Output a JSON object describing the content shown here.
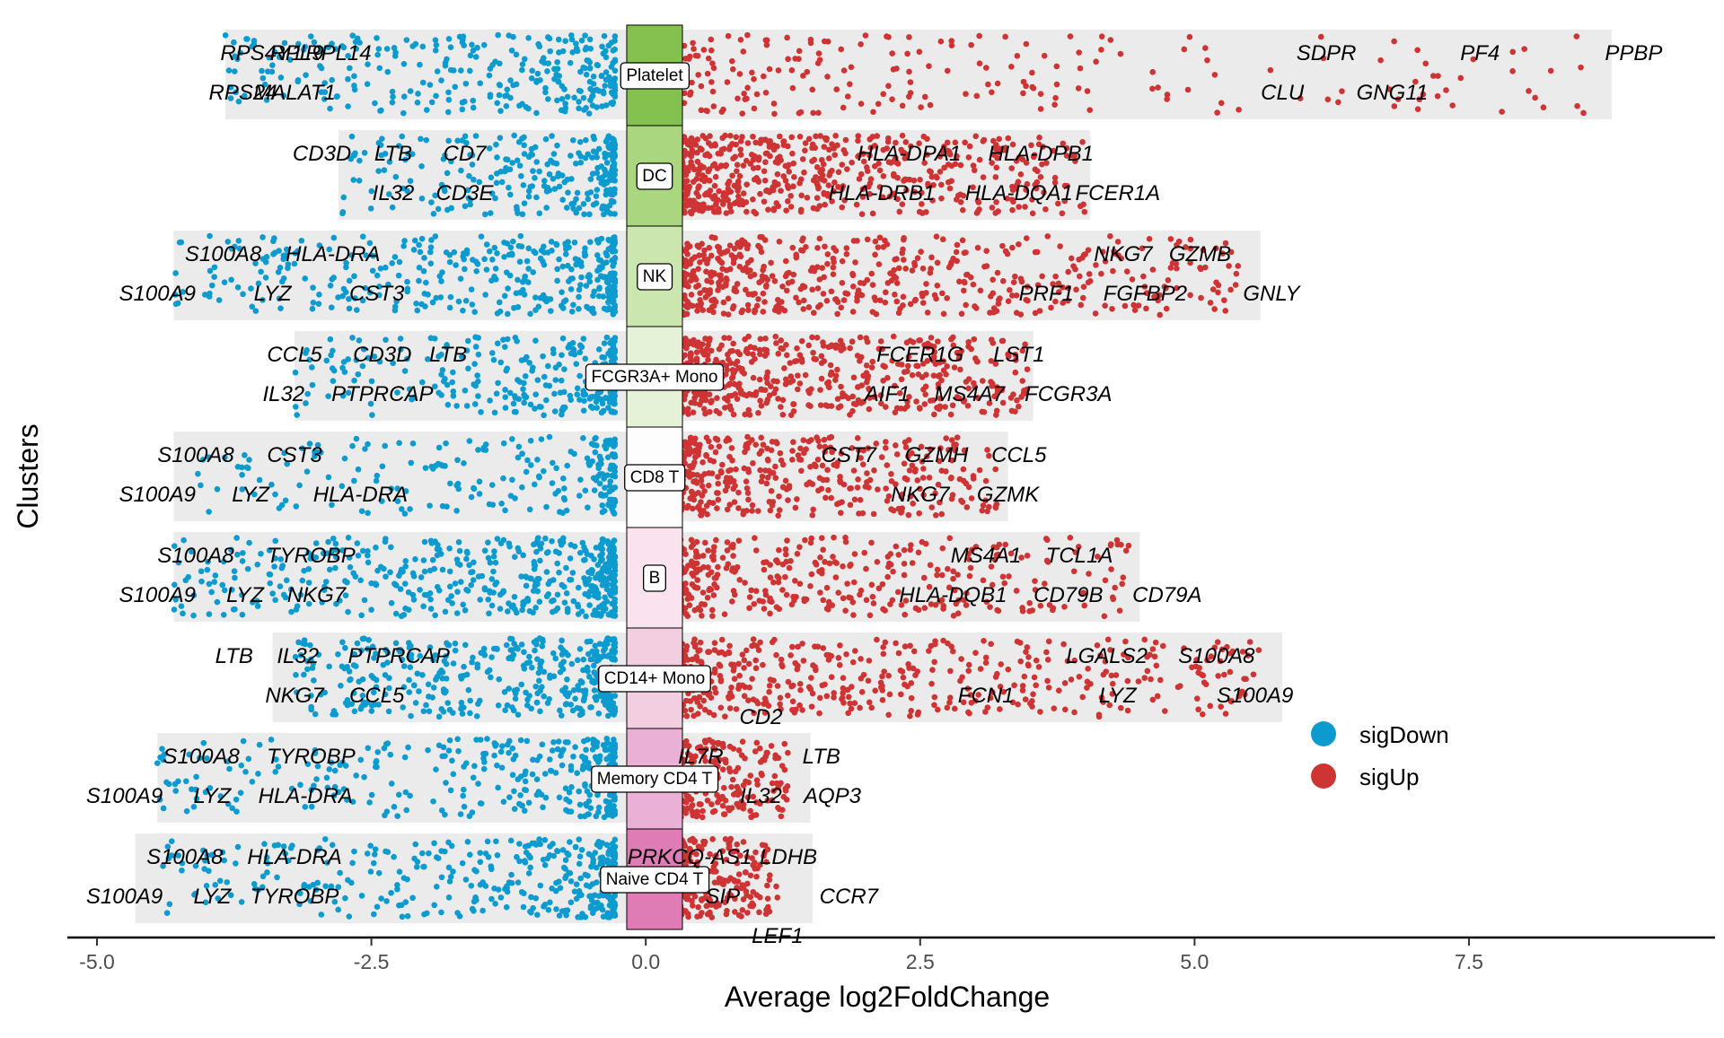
{
  "chart_data": {
    "type": "scatter",
    "xlabel": "Average log2FoldChange",
    "ylabel": "Clusters",
    "xlim": [
      -5.0,
      9.3
    ],
    "x_ticks": [
      "-5.0",
      "-2.5",
      "0.0",
      "2.5",
      "5.0",
      "7.5"
    ],
    "x_tick_values": [
      -5.0,
      -2.5,
      0.0,
      2.5,
      5.0,
      7.5
    ],
    "grid": false,
    "legend_position": "right",
    "legend": [
      {
        "name": "sigDown",
        "color": "#0C9BCE"
      },
      {
        "name": "sigUp",
        "color": "#CE3434"
      }
    ],
    "clusters": [
      {
        "name": "Platelet",
        "color": "#84C14F",
        "range": [
          -3.83,
          8.8
        ],
        "n_down": 300,
        "n_up": 220,
        "down_min": -3.83,
        "up_max": 8.8,
        "labels": [
          {
            "text": "RPS4Y1",
            "x": -3.5,
            "row": 0
          },
          {
            "text": "RPL9",
            "x": -3.18,
            "row": 0
          },
          {
            "text": "RPL14",
            "x": -2.8,
            "row": 0
          },
          {
            "text": "RPS24",
            "x": -3.67,
            "row": 1
          },
          {
            "text": "MALAT1",
            "x": -3.2,
            "row": 1
          },
          {
            "text": "SDPR",
            "x": 6.2,
            "row": 0
          },
          {
            "text": "PF4",
            "x": 7.6,
            "row": 0
          },
          {
            "text": "PPBP",
            "x": 9.0,
            "row": 0
          },
          {
            "text": "CLU",
            "x": 5.8,
            "row": 1
          },
          {
            "text": "GNG11",
            "x": 6.8,
            "row": 1
          }
        ]
      },
      {
        "name": "DC",
        "color": "#A9D67E",
        "range": [
          -2.8,
          4.05
        ],
        "n_down": 260,
        "n_up": 650,
        "down_min": -2.8,
        "up_max": 4.0,
        "labels": [
          {
            "text": "CD3D",
            "x": -2.95,
            "row": 0
          },
          {
            "text": "LTB",
            "x": -2.3,
            "row": 0
          },
          {
            "text": "CD7",
            "x": -1.65,
            "row": 0
          },
          {
            "text": "IL32",
            "x": -2.3,
            "row": 1
          },
          {
            "text": "CD3E",
            "x": -1.65,
            "row": 1
          },
          {
            "text": "HLA-DPA1",
            "x": 2.4,
            "row": 0
          },
          {
            "text": "HLA-DPB1",
            "x": 3.6,
            "row": 0
          },
          {
            "text": "HLA-DRB1",
            "x": 2.15,
            "row": 1
          },
          {
            "text": "HLA-DQA1",
            "x": 3.4,
            "row": 1
          },
          {
            "text": "FCER1A",
            "x": 4.3,
            "row": 1
          }
        ]
      },
      {
        "name": "NK",
        "color": "#CBE6AE",
        "range": [
          -4.3,
          5.6
        ],
        "n_down": 380,
        "n_up": 560,
        "down_min": -4.3,
        "up_max": 5.4,
        "labels": [
          {
            "text": "S100A8",
            "x": -3.85,
            "row": 0
          },
          {
            "text": "HLA-DRA",
            "x": -2.85,
            "row": 0
          },
          {
            "text": "S100A9",
            "x": -4.45,
            "row": 1
          },
          {
            "text": "LYZ",
            "x": -3.4,
            "row": 1
          },
          {
            "text": "CST3",
            "x": -2.45,
            "row": 1
          },
          {
            "text": "NKG7",
            "x": 4.35,
            "row": 0
          },
          {
            "text": "GZMB",
            "x": 5.05,
            "row": 0
          },
          {
            "text": "PRF1",
            "x": 3.65,
            "row": 1
          },
          {
            "text": "FGFBP2",
            "x": 4.55,
            "row": 1
          },
          {
            "text": "GNLY",
            "x": 5.7,
            "row": 1
          }
        ]
      },
      {
        "name": "FCGR3A+ Mono",
        "color": "#E6F2D8",
        "range": [
          -3.2,
          3.53
        ],
        "n_down": 290,
        "n_up": 560,
        "down_min": -3.2,
        "up_max": 3.5,
        "labels": [
          {
            "text": "CCL5",
            "x": -3.2,
            "row": 0
          },
          {
            "text": "CD3D",
            "x": -2.4,
            "row": 0
          },
          {
            "text": "LTB",
            "x": -1.8,
            "row": 0
          },
          {
            "text": "IL32",
            "x": -3.3,
            "row": 1
          },
          {
            "text": "PTPRCAP",
            "x": -2.4,
            "row": 1
          },
          {
            "text": "FCER1G",
            "x": 2.5,
            "row": 0
          },
          {
            "text": "LST1",
            "x": 3.4,
            "row": 0
          },
          {
            "text": "AIF1",
            "x": 2.2,
            "row": 1
          },
          {
            "text": "MS4A7",
            "x": 2.95,
            "row": 1
          },
          {
            "text": "FCGR3A",
            "x": 3.85,
            "row": 1
          }
        ]
      },
      {
        "name": "CD8 T",
        "color": "#FDFDFD",
        "range": [
          -4.3,
          3.3
        ],
        "n_down": 220,
        "n_up": 420,
        "down_min": -4.1,
        "up_max": 3.2,
        "labels": [
          {
            "text": "S100A8",
            "x": -4.1,
            "row": 0
          },
          {
            "text": "CST3",
            "x": -3.2,
            "row": 0
          },
          {
            "text": "S100A9",
            "x": -4.45,
            "row": 1
          },
          {
            "text": "LYZ",
            "x": -3.6,
            "row": 1
          },
          {
            "text": "HLA-DRA",
            "x": -2.6,
            "row": 1
          },
          {
            "text": "CST7",
            "x": 1.85,
            "row": 0
          },
          {
            "text": "GZMH",
            "x": 2.65,
            "row": 0
          },
          {
            "text": "CCL5",
            "x": 3.4,
            "row": 0
          },
          {
            "text": "NKG7",
            "x": 2.5,
            "row": 1
          },
          {
            "text": "GZMK",
            "x": 3.3,
            "row": 1
          }
        ]
      },
      {
        "name": "B",
        "color": "#FAE3EF",
        "range": [
          -4.3,
          4.5
        ],
        "n_down": 480,
        "n_up": 380,
        "down_min": -4.3,
        "up_max": 4.4,
        "labels": [
          {
            "text": "S100A8",
            "x": -4.1,
            "row": 0
          },
          {
            "text": "TYROBP",
            "x": -3.05,
            "row": 0
          },
          {
            "text": "S100A9",
            "x": -4.45,
            "row": 1
          },
          {
            "text": "LYZ",
            "x": -3.65,
            "row": 1
          },
          {
            "text": "NKG7",
            "x": -3.0,
            "row": 1
          },
          {
            "text": "MS4A1",
            "x": 3.1,
            "row": 0
          },
          {
            "text": "TCL1A",
            "x": 3.95,
            "row": 0
          },
          {
            "text": "HLA-DQB1",
            "x": 2.8,
            "row": 1
          },
          {
            "text": "CD79B",
            "x": 3.85,
            "row": 1
          },
          {
            "text": "CD79A",
            "x": 4.75,
            "row": 1
          }
        ]
      },
      {
        "name": "CD14+ Mono",
        "color": "#F2CEE0",
        "range": [
          -3.4,
          5.8
        ],
        "n_down": 420,
        "n_up": 470,
        "down_min": -3.25,
        "up_max": 5.6,
        "labels": [
          {
            "text": "LTB",
            "x": -3.75,
            "row": 0
          },
          {
            "text": "IL32",
            "x": -3.17,
            "row": 0
          },
          {
            "text": "PTPRCAP",
            "x": -2.25,
            "row": 0
          },
          {
            "text": "NKG7",
            "x": -3.2,
            "row": 1
          },
          {
            "text": "CCL5",
            "x": -2.45,
            "row": 1
          },
          {
            "text": "LGALS2",
            "x": 4.2,
            "row": 0
          },
          {
            "text": "S100A8",
            "x": 5.2,
            "row": 0
          },
          {
            "text": "FCN1",
            "x": 3.1,
            "row": 1
          },
          {
            "text": "LYZ",
            "x": 4.3,
            "row": 1
          },
          {
            "text": "S100A9",
            "x": 5.55,
            "row": 1
          }
        ]
      },
      {
        "name": "Memory CD4 T",
        "color": "#EBB0D6",
        "range": [
          -4.45,
          1.5
        ],
        "n_down": 330,
        "n_up": 260,
        "down_min": -4.45,
        "up_max": 1.3,
        "labels": [
          {
            "text": "S100A8",
            "x": -4.05,
            "row": 0
          },
          {
            "text": "TYROBP",
            "x": -3.05,
            "row": 0
          },
          {
            "text": "S100A9",
            "x": -4.75,
            "row": 1
          },
          {
            "text": "LYZ",
            "x": -3.95,
            "row": 1
          },
          {
            "text": "HLA-DRA",
            "x": -3.1,
            "row": 1
          },
          {
            "text": "CD2",
            "x": 1.05,
            "row": -1
          },
          {
            "text": "IL7R",
            "x": 0.5,
            "row": 0
          },
          {
            "text": "LTB",
            "x": 1.6,
            "row": 0
          },
          {
            "text": "IL32",
            "x": 1.05,
            "row": 1
          },
          {
            "text": "AQP3",
            "x": 1.7,
            "row": 1
          }
        ]
      },
      {
        "name": "Naive CD4 T",
        "color": "#E07CB5",
        "range": [
          -4.65,
          1.52
        ],
        "n_down": 380,
        "n_up": 230,
        "down_min": -4.45,
        "up_max": 1.2,
        "labels": [
          {
            "text": "S100A8",
            "x": -4.2,
            "row": 0
          },
          {
            "text": "HLA-DRA",
            "x": -3.2,
            "row": 0
          },
          {
            "text": "S100A9",
            "x": -4.75,
            "row": 1
          },
          {
            "text": "LYZ",
            "x": -3.95,
            "row": 1
          },
          {
            "text": "TYROBP",
            "x": -3.2,
            "row": 1
          },
          {
            "text": "PRKCQ-AS1",
            "x": 0.4,
            "row": 0
          },
          {
            "text": "LDHB",
            "x": 1.3,
            "row": 0
          },
          {
            "text": "SIP",
            "x": 0.7,
            "row": 1
          },
          {
            "text": "CCR7",
            "x": 1.85,
            "row": 1
          },
          {
            "text": "LEF1",
            "x": 1.2,
            "row": 2
          }
        ]
      }
    ]
  }
}
